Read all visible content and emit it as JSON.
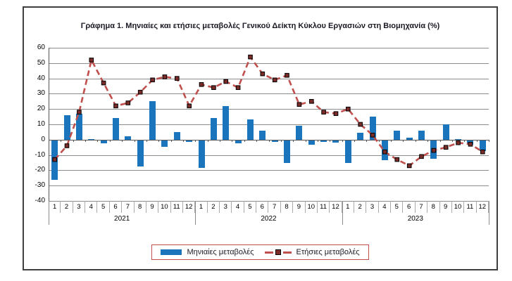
{
  "figure": {
    "title": "Γράφημα 1. Μηνιαίες και ετήσιες μεταβολές  Γενικού Δείκτη Κύκλου Εργασιών στη Βιομηχανία (%)"
  },
  "legend": {
    "monthly_label": "Μηνιαίες μεταβολές",
    "annual_label": "Ετήσιες μεταβολές"
  },
  "colors": {
    "bar": "#1B75BC",
    "line": "#C0504D",
    "marker_fill": "#7B2C29",
    "marker_stroke": "#000000",
    "grid": "#8c8c8c",
    "legend_border": "#C0504D"
  },
  "chart_data": {
    "type": "bar",
    "subtype": "bar+dashed-line",
    "title": "Γράφημα 1. Μηνιαίες και ετήσιες μεταβολές  Γενικού Δείκτη Κύκλου Εργασιών στη Βιομηχανία (%)",
    "ylim": [
      -40,
      60
    ],
    "ytick_step": 10,
    "grid": true,
    "legend_position": "bottom",
    "series": [
      {
        "name": "Μηνιαίες μεταβολές",
        "type": "bar",
        "color": "#1B75BC"
      },
      {
        "name": "Ετήσιες μεταβολές",
        "type": "line",
        "color": "#C0504D",
        "dashed": true,
        "marker": "square"
      }
    ],
    "years": [
      {
        "year": "2021",
        "month_labels": [
          "1",
          "2",
          "3",
          "4",
          "5",
          "6",
          "7",
          "8",
          "9",
          "10",
          "11",
          "12"
        ],
        "monthly": [
          -26,
          16,
          17,
          0.5,
          -2,
          14,
          2,
          -17,
          25,
          -4,
          5,
          -1
        ],
        "annual": [
          -13,
          -4,
          18,
          52,
          37,
          22,
          24,
          31,
          39,
          41,
          40,
          22
        ]
      },
      {
        "year": "2022",
        "month_labels": [
          "1",
          "2",
          "3",
          "4",
          "5",
          "6",
          "7",
          "8",
          "9",
          "10",
          "11",
          "12"
        ],
        "monthly": [
          -18,
          14,
          22,
          -2,
          13,
          6,
          -1,
          -15,
          9,
          -3,
          -1,
          -1.5
        ],
        "annual": [
          36,
          34,
          38,
          34,
          54,
          43,
          39,
          42,
          23,
          25,
          18,
          17
        ]
      },
      {
        "year": "2023",
        "month_labels": [
          "1",
          "2",
          "3",
          "4",
          "5",
          "6",
          "7",
          "8",
          "9",
          "10",
          "11",
          "12"
        ],
        "monthly": [
          -15,
          4.5,
          15,
          -13,
          6,
          1.5,
          6,
          -12,
          10,
          0.5,
          -3,
          -7
        ],
        "annual": [
          20,
          10,
          3,
          -8,
          -13,
          -17,
          -11,
          -7,
          -5,
          -2,
          -3,
          -8
        ]
      }
    ]
  }
}
